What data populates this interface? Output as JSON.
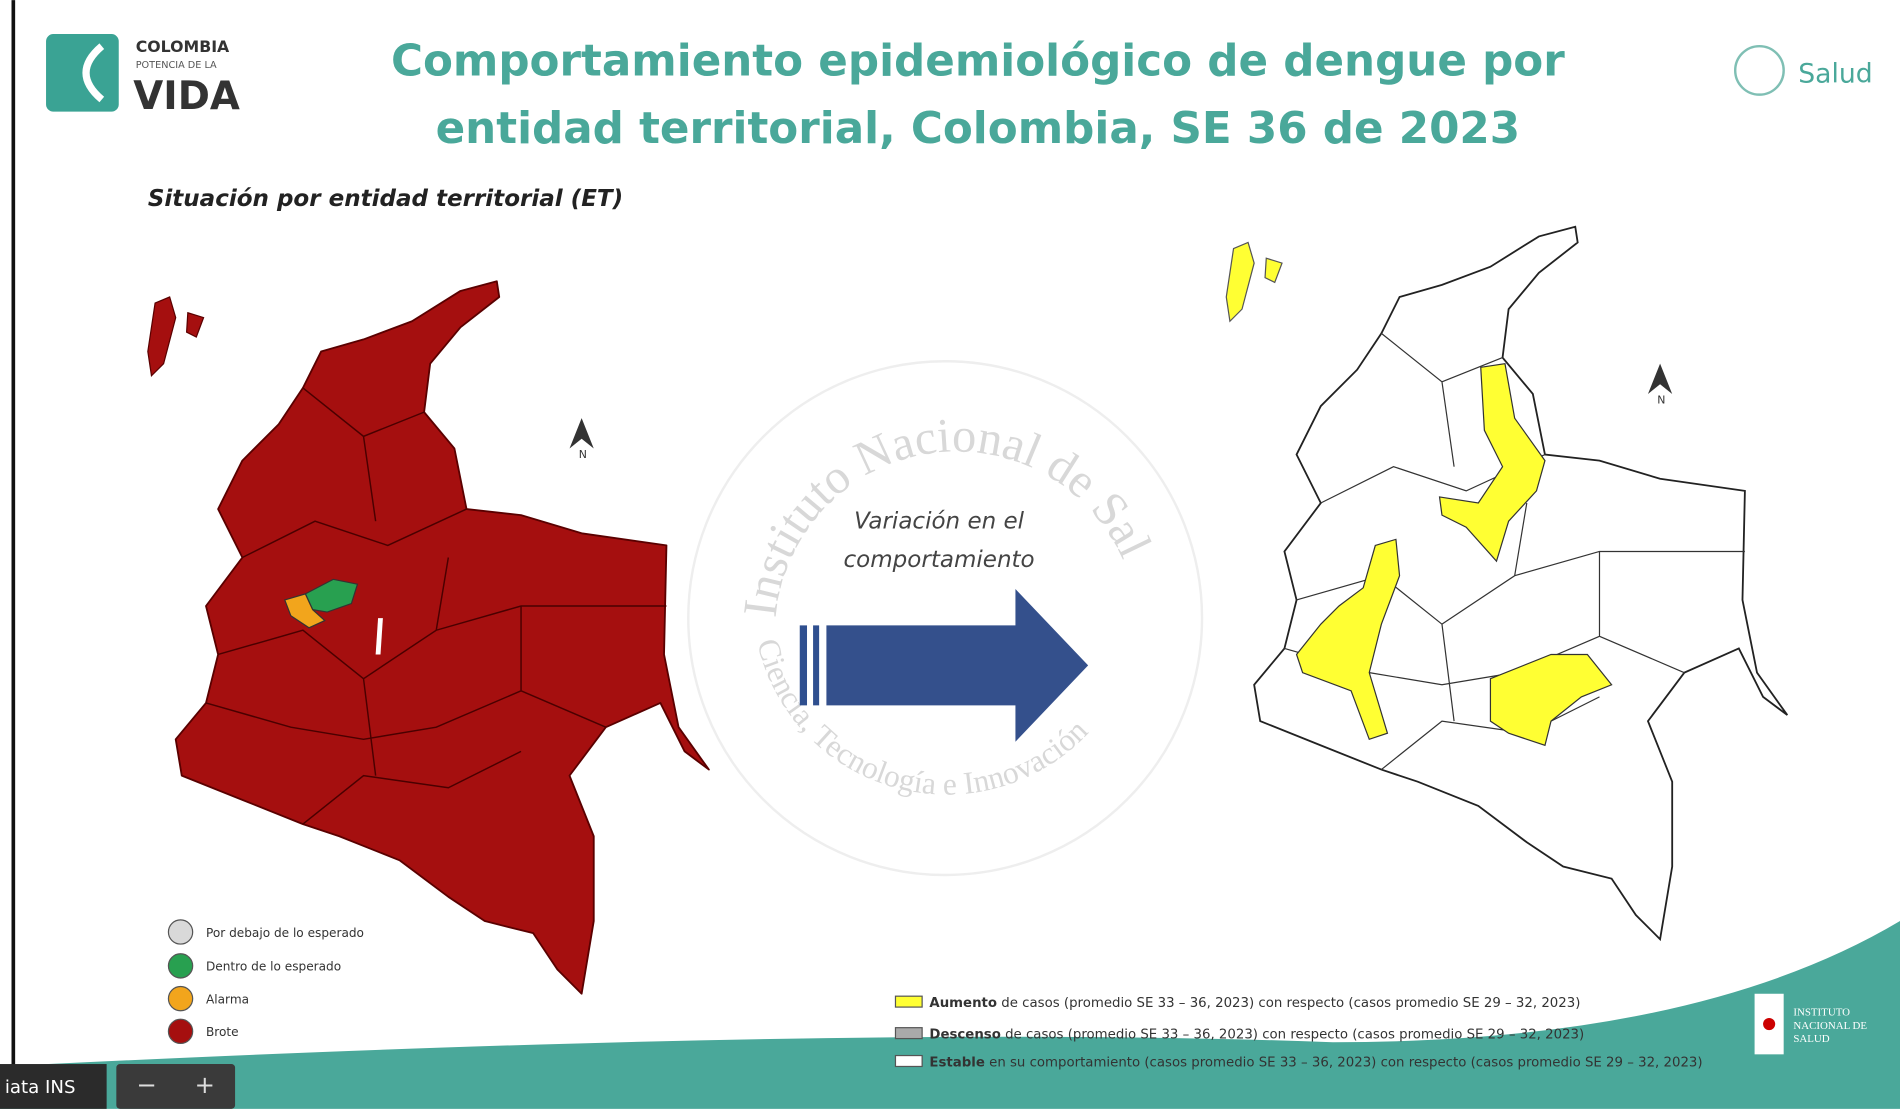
{
  "header": {
    "logo_left": {
      "line1": "COLOMBIA",
      "line2": "POTENCIA DE LA",
      "line3": "VIDA"
    },
    "title_line1": "Comportamiento epidemiológico de dengue por",
    "title_line2": "entidad territorial, Colombia, SE 36 de 2023",
    "logo_right": "Salud"
  },
  "subtitle": "Situación por entidad territorial (ET)",
  "left_map": {
    "north": "N",
    "legend": [
      "Por debajo de lo esperado",
      "Dentro de lo esperado",
      "Alarma",
      "Brote"
    ]
  },
  "arrow": {
    "label_line1": "Variación en el",
    "label_line2": "comportamiento"
  },
  "watermark": {
    "top": "Instituto Nacional de Salud",
    "bottom": "Ciencia, Tecnología e Innovación"
  },
  "right_map": {
    "north": "N",
    "legend": [
      {
        "term": "Aumento",
        "text": " de casos (promedio SE 33 – 36, 2023) con respecto (casos promedio SE 29 – 32, 2023)"
      },
      {
        "term": "Descenso",
        "text": " de casos (promedio  SE 33 – 36, 2023) con respecto (casos promedio SE 29 – 32, 2023)"
      },
      {
        "term": "Estable",
        "text": " en su comportamiento (casos promedio SE  33 – 36, 2023) con respecto (casos promedio SE 29 – 32, 2023)"
      }
    ]
  },
  "ins_logo": [
    "INSTITUTO",
    "NACIONAL DE",
    "SALUD"
  ],
  "toolbar": {
    "label": "iata INS",
    "zoom_out": "−",
    "zoom_in": "+"
  }
}
